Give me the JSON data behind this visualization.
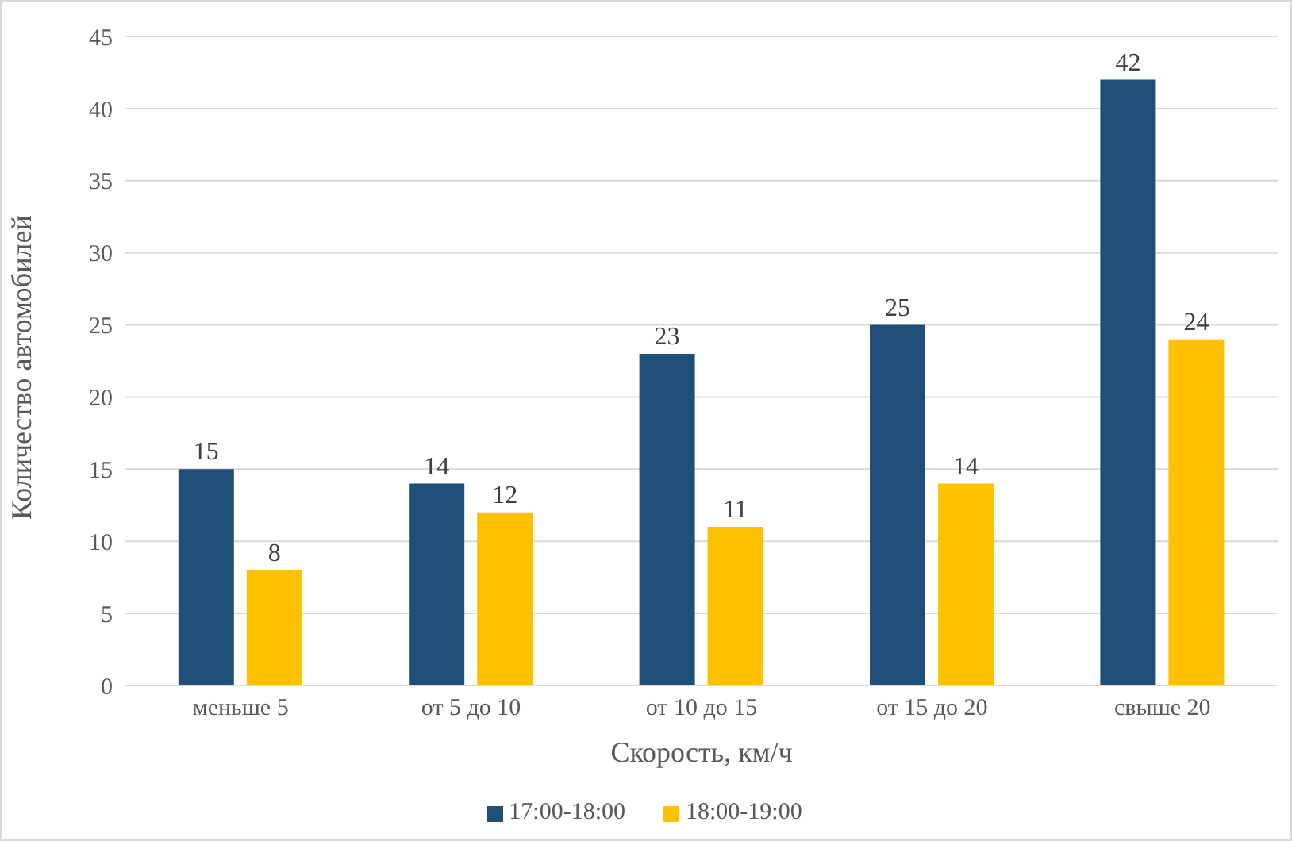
{
  "chart_data": {
    "type": "bar",
    "xlabel": "Скорость, км/ч",
    "ylabel": "Количество автомобилей",
    "categories": [
      "меньше 5",
      "от 5 до 10",
      "от 10 до 15",
      "от 15 до 20",
      "свыше 20"
    ],
    "series": [
      {
        "name": "17:00-18:00",
        "color": "#1f4e79",
        "values": [
          15,
          14,
          23,
          25,
          42
        ]
      },
      {
        "name": "18:00-19:00",
        "color": "#ffc000",
        "values": [
          8,
          12,
          11,
          14,
          24
        ]
      }
    ],
    "ylim": [
      0,
      45
    ],
    "yticks": [
      0,
      5,
      10,
      15,
      20,
      25,
      30,
      35,
      40,
      45
    ],
    "grid": "y",
    "legend": "bottom",
    "data_labels": true
  }
}
